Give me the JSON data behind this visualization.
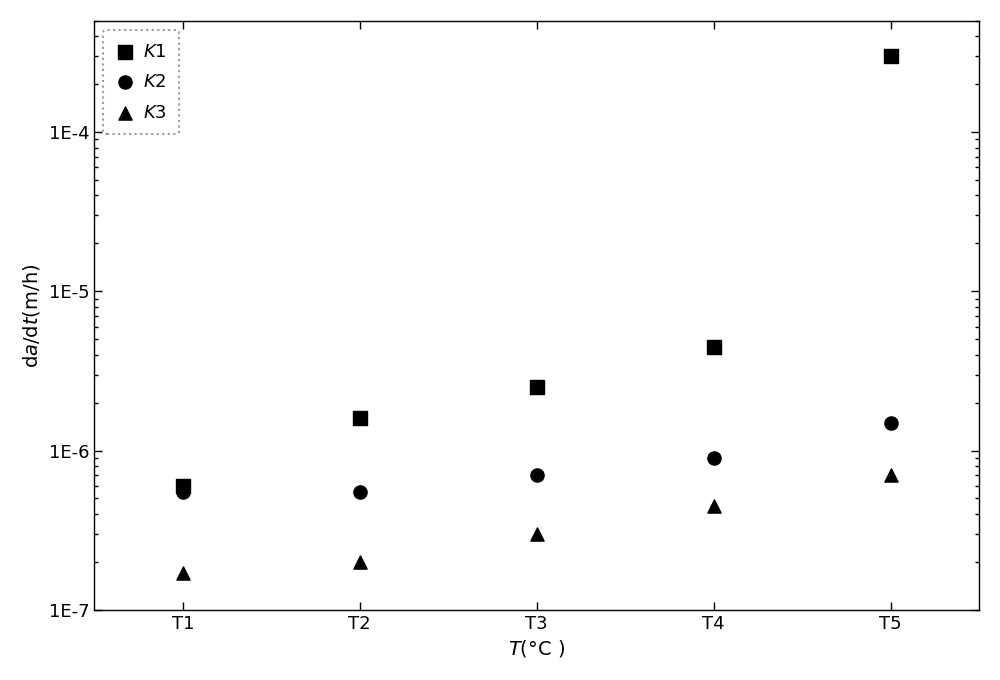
{
  "categories": [
    "T1",
    "T2",
    "T3",
    "T4",
    "T5"
  ],
  "K1": [
    6e-07,
    1.6e-06,
    2.5e-06,
    4.5e-06,
    0.0003
  ],
  "K2": [
    5.5e-07,
    5.5e-07,
    7e-07,
    9e-07,
    1.5e-06
  ],
  "K3": [
    1.7e-07,
    2e-07,
    3e-07,
    4.5e-07,
    7e-07
  ],
  "ylim_min": 1e-07,
  "ylim_max": 0.0005,
  "bg_color": "#ffffff",
  "marker_color": "#000000",
  "marker_size": 90,
  "fontsize_ticks": 13,
  "fontsize_label": 14,
  "fontsize_legend": 13
}
